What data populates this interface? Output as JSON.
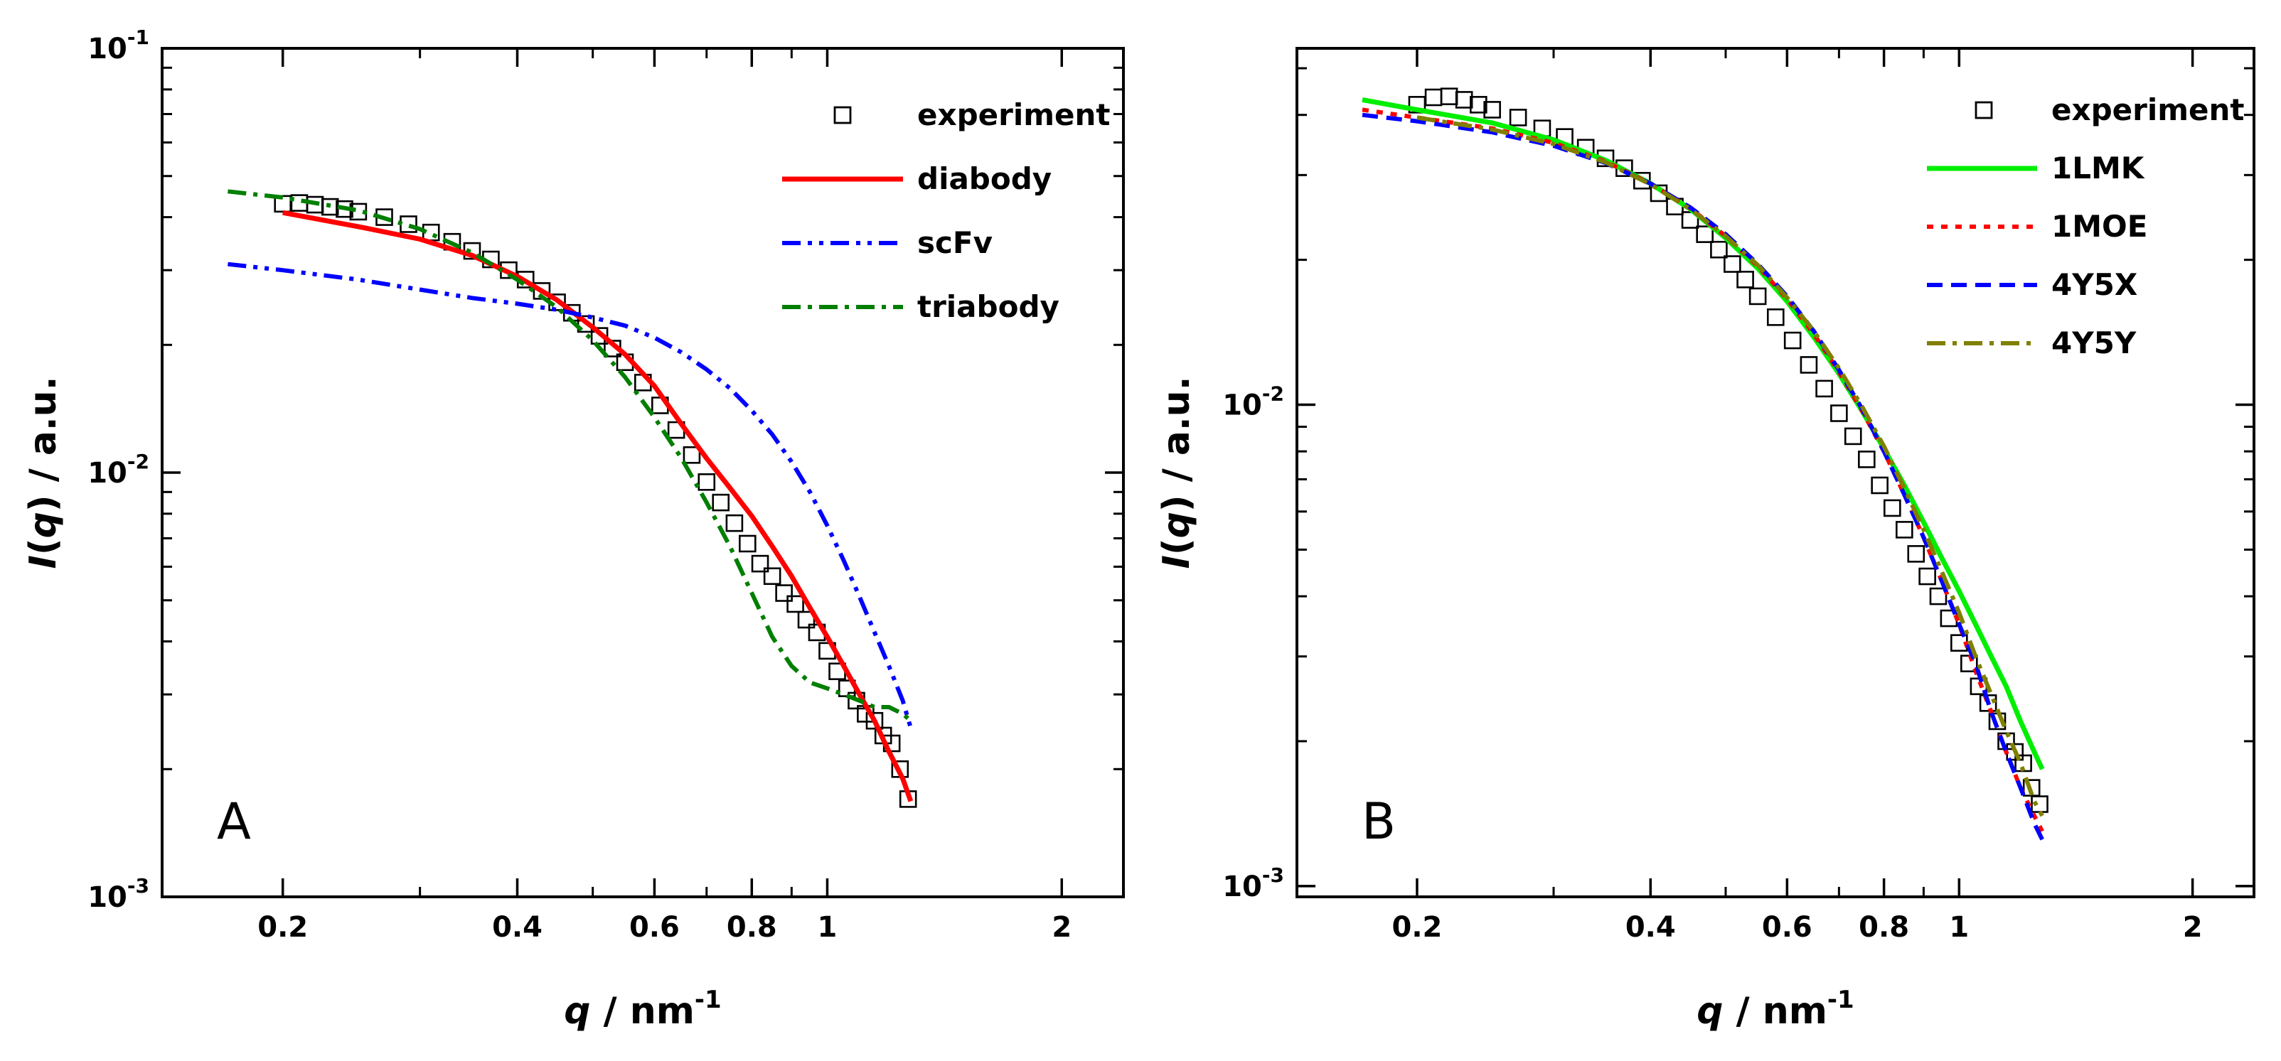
{
  "chart_data": [
    {
      "type": "line",
      "panel_label": "A",
      "xlabel": {
        "var": "q",
        "sep": " / ",
        "unit": "nm",
        "exp": "-1"
      },
      "ylabel": {
        "var": "I",
        "arg": "q",
        "sep": " / ",
        "unit": "a.u."
      },
      "xscale": "log",
      "yscale": "log",
      "xlim": [
        0.14,
        2.4
      ],
      "ylim": [
        0.001,
        0.1
      ],
      "x_ticks": [
        0.2,
        0.4,
        0.6,
        0.8,
        1,
        2
      ],
      "x_tick_labels": [
        "0.2",
        "0.4",
        "0.6",
        "0.8",
        "1",
        "2"
      ],
      "y_ticks": [
        {
          "value": 0.1,
          "base": "10",
          "exp": "-1"
        },
        {
          "value": 0.01,
          "base": "10",
          "exp": "-2"
        },
        {
          "value": 0.001,
          "base": "10",
          "exp": "-3"
        }
      ],
      "legend_position": "top-right",
      "series": [
        {
          "name": "experiment",
          "style": "open-square",
          "color": "#000000",
          "x": [
            0.2,
            0.21,
            0.22,
            0.23,
            0.24,
            0.25,
            0.27,
            0.29,
            0.31,
            0.33,
            0.35,
            0.37,
            0.39,
            0.41,
            0.43,
            0.45,
            0.47,
            0.49,
            0.51,
            0.53,
            0.55,
            0.58,
            0.61,
            0.64,
            0.67,
            0.7,
            0.73,
            0.76,
            0.79,
            0.82,
            0.85,
            0.88,
            0.91,
            0.94,
            0.97,
            1.0,
            1.03,
            1.06,
            1.09,
            1.12,
            1.15,
            1.18,
            1.21,
            1.24,
            1.27
          ],
          "y": [
            0.043,
            0.0432,
            0.0428,
            0.0423,
            0.0418,
            0.0412,
            0.04,
            0.0385,
            0.0368,
            0.035,
            0.0333,
            0.0318,
            0.03,
            0.0285,
            0.0268,
            0.0252,
            0.0238,
            0.0224,
            0.021,
            0.0196,
            0.0182,
            0.0163,
            0.0144,
            0.0126,
            0.011,
            0.0095,
            0.0085,
            0.0076,
            0.0068,
            0.0061,
            0.0057,
            0.0052,
            0.0049,
            0.0045,
            0.0042,
            0.0038,
            0.0034,
            0.0031,
            0.0029,
            0.0027,
            0.0026,
            0.0024,
            0.0023,
            0.002,
            0.0017
          ]
        },
        {
          "name": "diabody",
          "style": "solid",
          "color": "#ff0000",
          "x": [
            0.2,
            0.25,
            0.3,
            0.35,
            0.4,
            0.45,
            0.5,
            0.55,
            0.6,
            0.65,
            0.7,
            0.75,
            0.8,
            0.85,
            0.9,
            0.95,
            1.0,
            1.05,
            1.1,
            1.15,
            1.2,
            1.25,
            1.28
          ],
          "y": [
            0.041,
            0.038,
            0.0355,
            0.0325,
            0.029,
            0.0255,
            0.022,
            0.019,
            0.016,
            0.013,
            0.0108,
            0.0092,
            0.0079,
            0.0067,
            0.0057,
            0.0048,
            0.0041,
            0.0035,
            0.003,
            0.0026,
            0.0022,
            0.0019,
            0.00168
          ]
        },
        {
          "name": "scFv",
          "style": "dash-dot-dot",
          "color": "#0000ff",
          "x": [
            0.17,
            0.2,
            0.25,
            0.3,
            0.35,
            0.4,
            0.45,
            0.5,
            0.55,
            0.6,
            0.65,
            0.7,
            0.75,
            0.8,
            0.85,
            0.9,
            0.95,
            1.0,
            1.05,
            1.1,
            1.15,
            1.2,
            1.25,
            1.28
          ],
          "y": [
            0.031,
            0.03,
            0.0285,
            0.027,
            0.0258,
            0.025,
            0.0242,
            0.0232,
            0.0222,
            0.0208,
            0.0192,
            0.0175,
            0.0158,
            0.014,
            0.0123,
            0.0106,
            0.009,
            0.0075,
            0.0062,
            0.0051,
            0.0042,
            0.0035,
            0.0029,
            0.0025
          ]
        },
        {
          "name": "triabody",
          "style": "dash-dot",
          "color": "#007f00",
          "x": [
            0.17,
            0.2,
            0.25,
            0.3,
            0.35,
            0.4,
            0.45,
            0.5,
            0.55,
            0.6,
            0.65,
            0.7,
            0.75,
            0.8,
            0.85,
            0.9,
            0.95,
            1.0,
            1.05,
            1.1,
            1.15,
            1.2,
            1.25,
            1.28
          ],
          "y": [
            0.046,
            0.0445,
            0.0415,
            0.0375,
            0.033,
            0.0285,
            0.0245,
            0.0205,
            0.0168,
            0.0135,
            0.0108,
            0.0085,
            0.0067,
            0.0052,
            0.0041,
            0.0035,
            0.0032,
            0.0031,
            0.003,
            0.0029,
            0.0028,
            0.0028,
            0.0027,
            0.0026
          ]
        }
      ]
    },
    {
      "type": "line",
      "panel_label": "B",
      "xlabel": {
        "var": "q",
        "sep": " / ",
        "unit": "nm",
        "exp": "-1"
      },
      "ylabel": {
        "var": "I",
        "arg": "q",
        "sep": " / ",
        "unit": "a.u."
      },
      "xscale": "log",
      "yscale": "log",
      "xlim": [
        0.14,
        2.4
      ],
      "ylim": [
        0.00095,
        0.055
      ],
      "x_ticks": [
        0.2,
        0.4,
        0.6,
        0.8,
        1,
        2
      ],
      "x_tick_labels": [
        "0.2",
        "0.4",
        "0.6",
        "0.8",
        "1",
        "2"
      ],
      "y_ticks": [
        {
          "value": 0.01,
          "base": "10",
          "exp": "-2"
        },
        {
          "value": 0.001,
          "base": "10",
          "exp": "-3"
        }
      ],
      "legend_position": "top-right",
      "series": [
        {
          "name": "experiment",
          "style": "open-square",
          "color": "#000000",
          "x": [
            0.2,
            0.21,
            0.22,
            0.23,
            0.24,
            0.25,
            0.27,
            0.29,
            0.31,
            0.33,
            0.35,
            0.37,
            0.39,
            0.41,
            0.43,
            0.45,
            0.47,
            0.49,
            0.51,
            0.53,
            0.55,
            0.58,
            0.61,
            0.64,
            0.67,
            0.7,
            0.73,
            0.76,
            0.79,
            0.82,
            0.85,
            0.88,
            0.91,
            0.94,
            0.97,
            1.0,
            1.03,
            1.06,
            1.09,
            1.12,
            1.15,
            1.18,
            1.21,
            1.24,
            1.27
          ],
          "y": [
            0.042,
            0.0435,
            0.0437,
            0.043,
            0.042,
            0.041,
            0.0395,
            0.0375,
            0.036,
            0.0342,
            0.0325,
            0.031,
            0.0292,
            0.0275,
            0.0258,
            0.0242,
            0.0226,
            0.021,
            0.0196,
            0.0182,
            0.0168,
            0.0152,
            0.0136,
            0.0121,
            0.0108,
            0.0096,
            0.0086,
            0.0077,
            0.0068,
            0.0061,
            0.0055,
            0.0049,
            0.0044,
            0.004,
            0.0036,
            0.0032,
            0.0029,
            0.0026,
            0.0024,
            0.0022,
            0.002,
            0.0019,
            0.0018,
            0.0016,
            0.00148
          ]
        },
        {
          "name": "1LMK",
          "style": "solid",
          "color": "#00ee00",
          "x": [
            0.17,
            0.2,
            0.25,
            0.3,
            0.35,
            0.4,
            0.45,
            0.5,
            0.55,
            0.6,
            0.65,
            0.7,
            0.75,
            0.8,
            0.85,
            0.9,
            0.95,
            1.0,
            1.05,
            1.1,
            1.15,
            1.2,
            1.25,
            1.28
          ],
          "y": [
            0.043,
            0.041,
            0.0385,
            0.0355,
            0.0322,
            0.0288,
            0.0255,
            0.0222,
            0.0192,
            0.0164,
            0.0138,
            0.0116,
            0.0097,
            0.0081,
            0.0068,
            0.0057,
            0.0048,
            0.0041,
            0.0035,
            0.003,
            0.0026,
            0.0022,
            0.0019,
            0.00175
          ]
        },
        {
          "name": "1MOE",
          "style": "dotted",
          "color": "#ff0000",
          "x": [
            0.17,
            0.2,
            0.25,
            0.3,
            0.35,
            0.4,
            0.45,
            0.5,
            0.55,
            0.6,
            0.65,
            0.7,
            0.75,
            0.8,
            0.85,
            0.9,
            0.95,
            1.0,
            1.05,
            1.1,
            1.15,
            1.2,
            1.25,
            1.28
          ],
          "y": [
            0.041,
            0.0395,
            0.0375,
            0.035,
            0.032,
            0.0288,
            0.0256,
            0.0224,
            0.0194,
            0.0166,
            0.014,
            0.0117,
            0.0097,
            0.008,
            0.0065,
            0.0053,
            0.0043,
            0.0035,
            0.0028,
            0.0023,
            0.0019,
            0.0016,
            0.0014,
            0.0013
          ]
        },
        {
          "name": "4Y5X",
          "style": "dashed",
          "color": "#0000ff",
          "x": [
            0.17,
            0.2,
            0.25,
            0.3,
            0.35,
            0.4,
            0.45,
            0.5,
            0.55,
            0.6,
            0.65,
            0.7,
            0.75,
            0.8,
            0.85,
            0.9,
            0.95,
            1.0,
            1.05,
            1.1,
            1.15,
            1.2,
            1.25,
            1.28
          ],
          "y": [
            0.04,
            0.0388,
            0.0368,
            0.0345,
            0.0318,
            0.0288,
            0.0257,
            0.0226,
            0.0196,
            0.0168,
            0.0142,
            0.0118,
            0.0098,
            0.008,
            0.0065,
            0.0053,
            0.0043,
            0.0035,
            0.0029,
            0.0023,
            0.0019,
            0.0016,
            0.00135,
            0.00125
          ]
        },
        {
          "name": "4Y5Y",
          "style": "dash-dot",
          "color": "#808000",
          "x": [
            0.2,
            0.25,
            0.3,
            0.35,
            0.4,
            0.45,
            0.5,
            0.55,
            0.6,
            0.65,
            0.7,
            0.75,
            0.8,
            0.85,
            0.9,
            0.95,
            1.0,
            1.05,
            1.1,
            1.15,
            1.2,
            1.25,
            1.28
          ],
          "y": [
            0.0395,
            0.0373,
            0.0348,
            0.0319,
            0.0287,
            0.0255,
            0.0224,
            0.0195,
            0.0167,
            0.0142,
            0.0119,
            0.0099,
            0.0082,
            0.0067,
            0.0055,
            0.0045,
            0.0037,
            0.003,
            0.0025,
            0.0021,
            0.0018,
            0.0015,
            0.0014
          ]
        }
      ]
    }
  ]
}
